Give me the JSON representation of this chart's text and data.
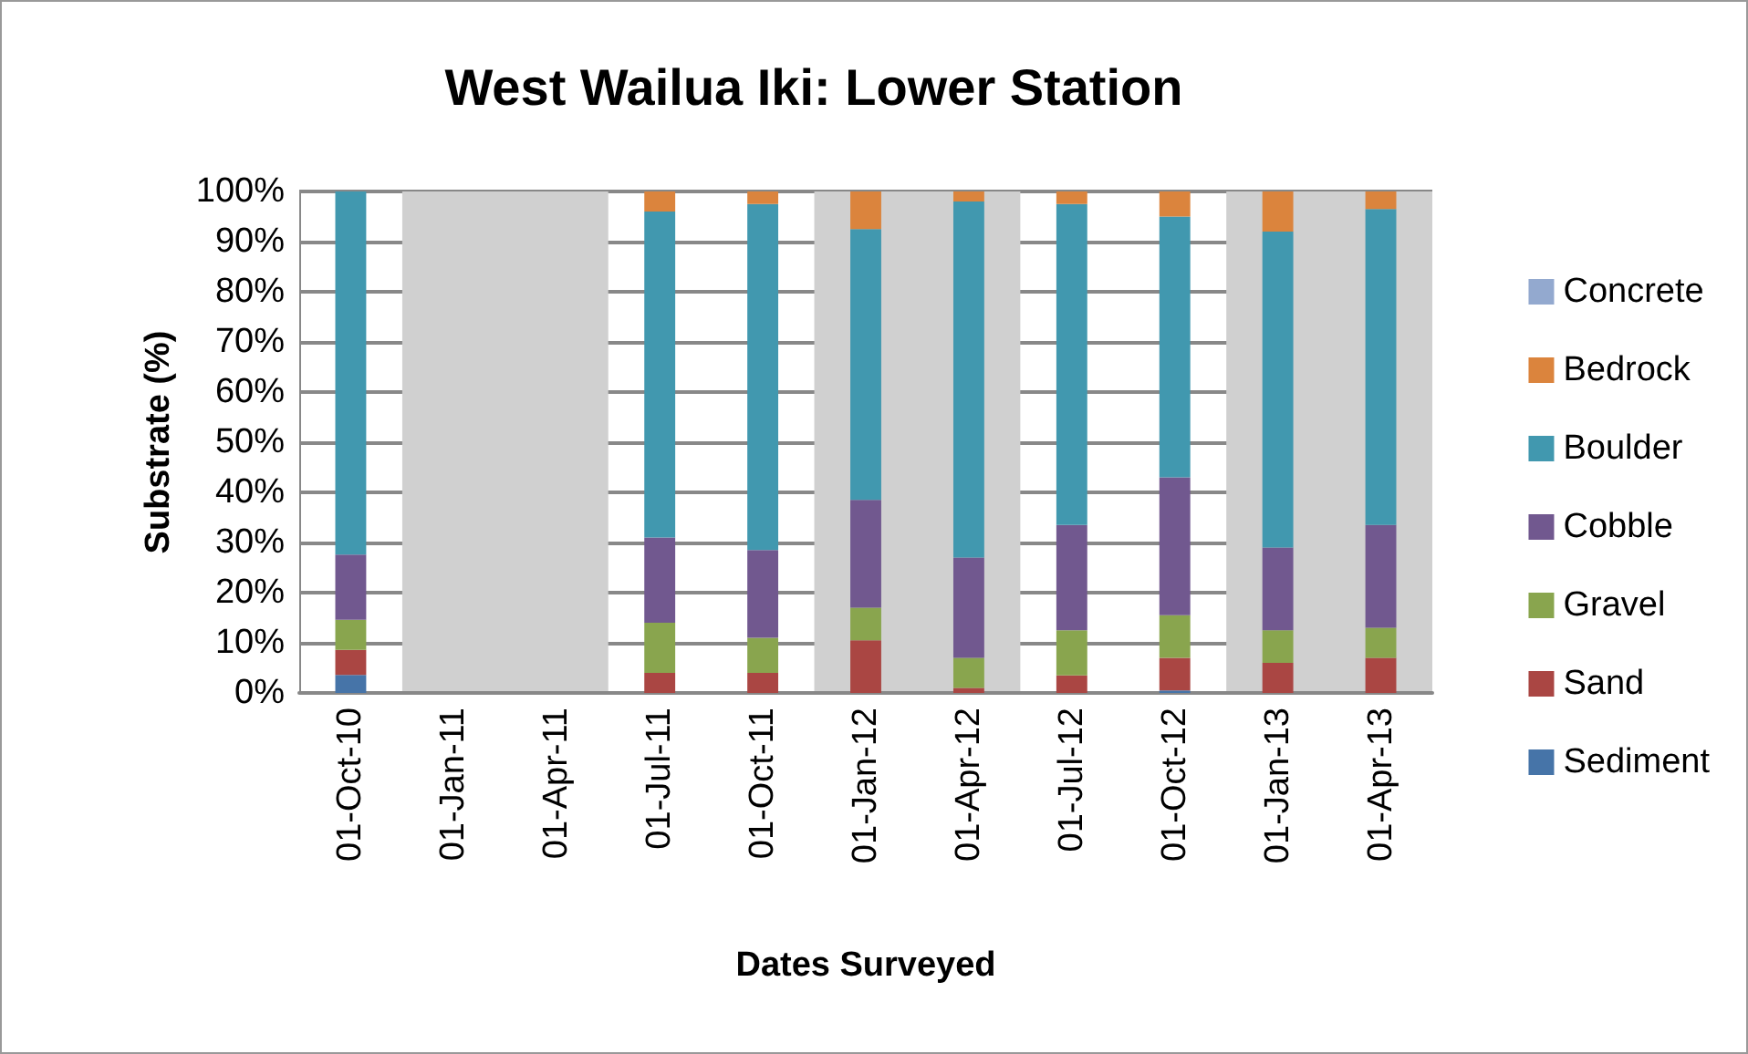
{
  "chart_data": {
    "type": "bar",
    "stacked": true,
    "title": "West Wailua Iki: Lower Station",
    "xlabel": "Dates Surveyed",
    "ylabel": "Substrate (%)",
    "categories": [
      "01-Oct-10",
      "01-Jan-11",
      "01-Apr-11",
      "01-Jul-11",
      "01-Oct-11",
      "01-Jan-12",
      "01-Apr-12",
      "01-Jul-12",
      "01-Oct-12",
      "01-Jan-13",
      "01-Apr-13"
    ],
    "series": [
      {
        "name": "Sediment",
        "color": "#4674a8",
        "values": [
          3.6,
          null,
          null,
          0,
          0,
          0,
          0,
          0,
          0.5,
          0,
          0
        ]
      },
      {
        "name": "Sand",
        "color": "#aa4643",
        "values": [
          5,
          null,
          null,
          4,
          4,
          10.5,
          1,
          3.5,
          6.5,
          6,
          7
        ]
      },
      {
        "name": "Gravel",
        "color": "#89a54e",
        "values": [
          6,
          null,
          null,
          10,
          7,
          6.5,
          6,
          9,
          8.5,
          6.5,
          6
        ]
      },
      {
        "name": "Cobble",
        "color": "#71588f",
        "values": [
          13,
          null,
          null,
          17,
          17.5,
          21.5,
          20,
          21,
          27.5,
          16.5,
          20.5
        ]
      },
      {
        "name": "Boulder",
        "color": "#4198af",
        "values": [
          72.4,
          null,
          null,
          65,
          69,
          54,
          71,
          64,
          52,
          63,
          63
        ]
      },
      {
        "name": "Bedrock",
        "color": "#db843d",
        "values": [
          0,
          null,
          null,
          4,
          2.5,
          7.5,
          2,
          2.5,
          5,
          8,
          3.5
        ]
      },
      {
        "name": "Concrete",
        "color": "#93a9cf",
        "values": [
          0,
          null,
          null,
          0,
          0,
          0,
          0,
          0,
          0,
          0,
          0
        ]
      }
    ],
    "ylim": [
      0,
      100
    ],
    "yticks": [
      {
        "value": 0,
        "label": "0%"
      },
      {
        "value": 10,
        "label": "10%"
      },
      {
        "value": 20,
        "label": "20%"
      },
      {
        "value": 30,
        "label": "30%"
      },
      {
        "value": 40,
        "label": "40%"
      },
      {
        "value": 50,
        "label": "50%"
      },
      {
        "value": 60,
        "label": "60%"
      },
      {
        "value": 70,
        "label": "70%"
      },
      {
        "value": 80,
        "label": "80%"
      },
      {
        "value": 90,
        "label": "90%"
      },
      {
        "value": 100,
        "label": "100%"
      }
    ],
    "bands": [
      {
        "axis": "x",
        "from": "01-Jan-11",
        "to": "01-Apr-11",
        "color": "#d0d0d0"
      },
      {
        "axis": "x",
        "from": "01-Jan-12",
        "to": "01-Apr-12",
        "color": "#d0d0d0"
      },
      {
        "axis": "x",
        "from": "01-Jan-13",
        "to": "01-Apr-13",
        "color": "#d0d0d0"
      }
    ],
    "grid": "y",
    "legend": "right"
  }
}
